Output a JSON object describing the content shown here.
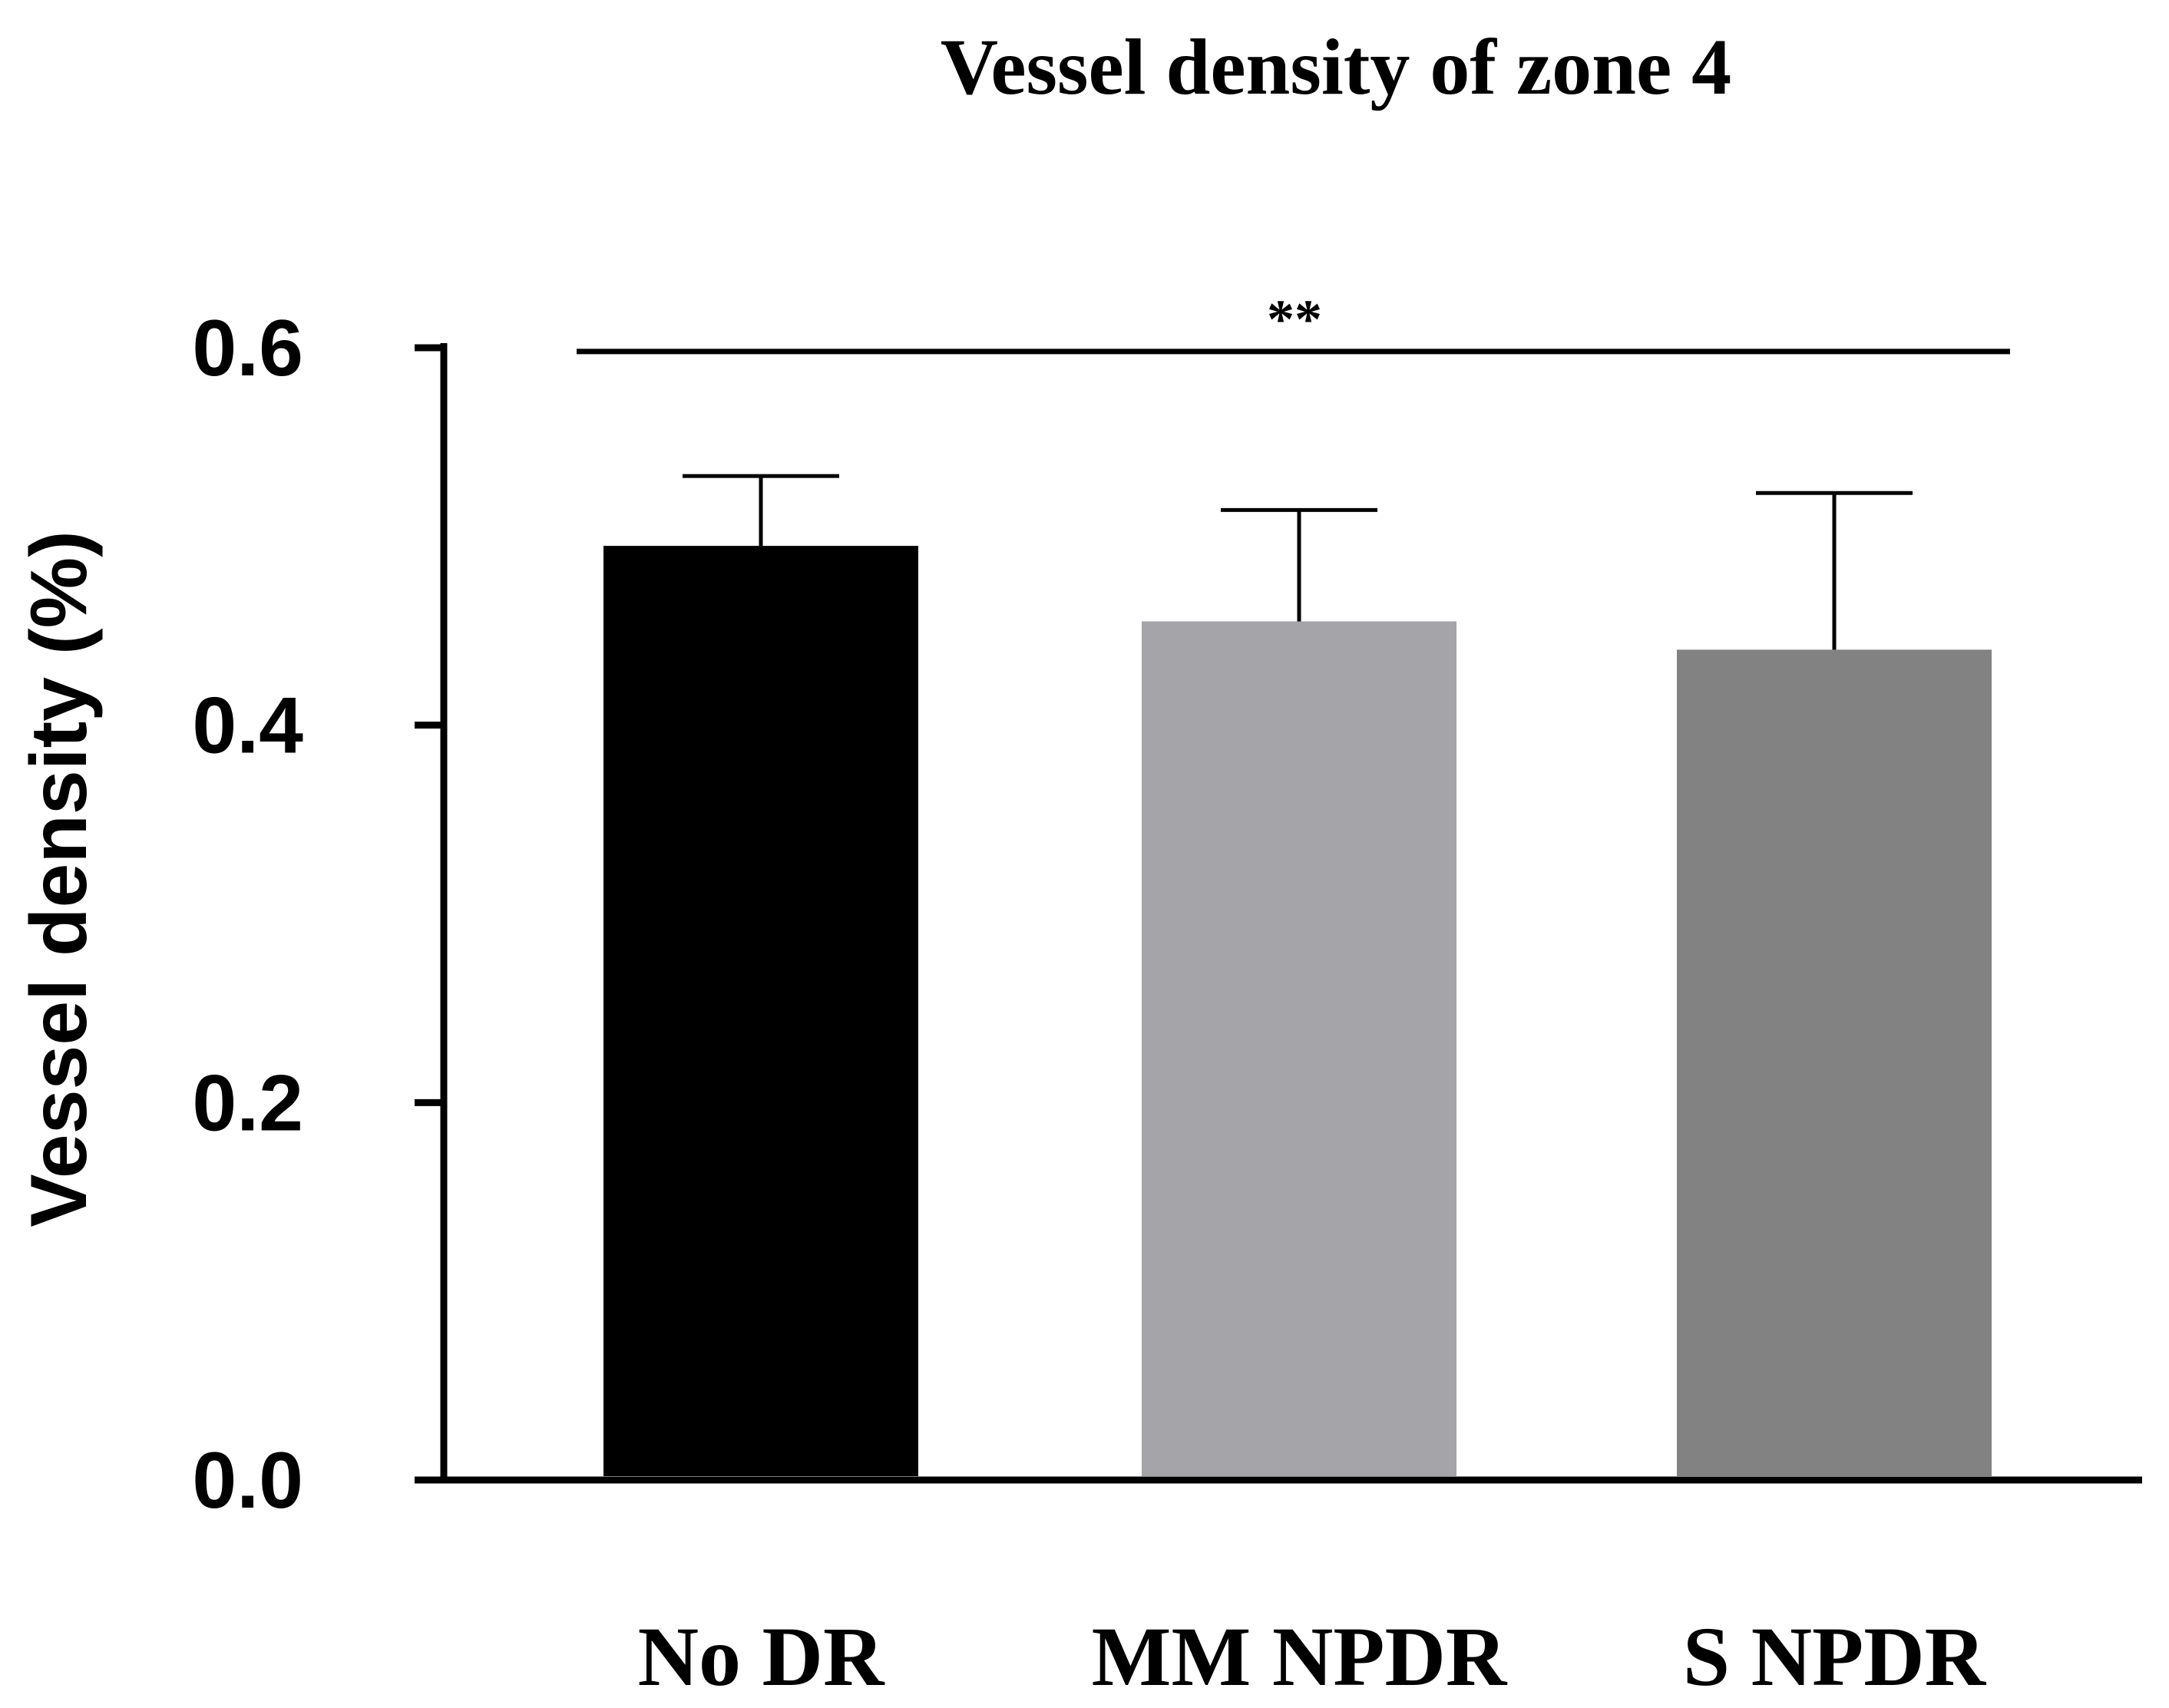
{
  "chart_data": {
    "type": "bar",
    "title": "Vessel density of zone 4",
    "xlabel": "",
    "ylabel": "Vessel density (%)",
    "ylim": [
      0,
      0.6
    ],
    "yticks": [
      "0.0",
      "0.2",
      "0.4",
      "0.6"
    ],
    "categories": [
      "No DR",
      "MM NPDR",
      "S NPDR"
    ],
    "values": [
      0.495,
      0.455,
      0.44
    ],
    "error_upper": [
      0.532,
      0.514,
      0.523
    ],
    "colors": [
      "#000000",
      "#a5a4a8",
      "#828282"
    ],
    "significance": {
      "label": "**",
      "from_category": 0,
      "to_category": 2,
      "y": 0.598
    }
  }
}
